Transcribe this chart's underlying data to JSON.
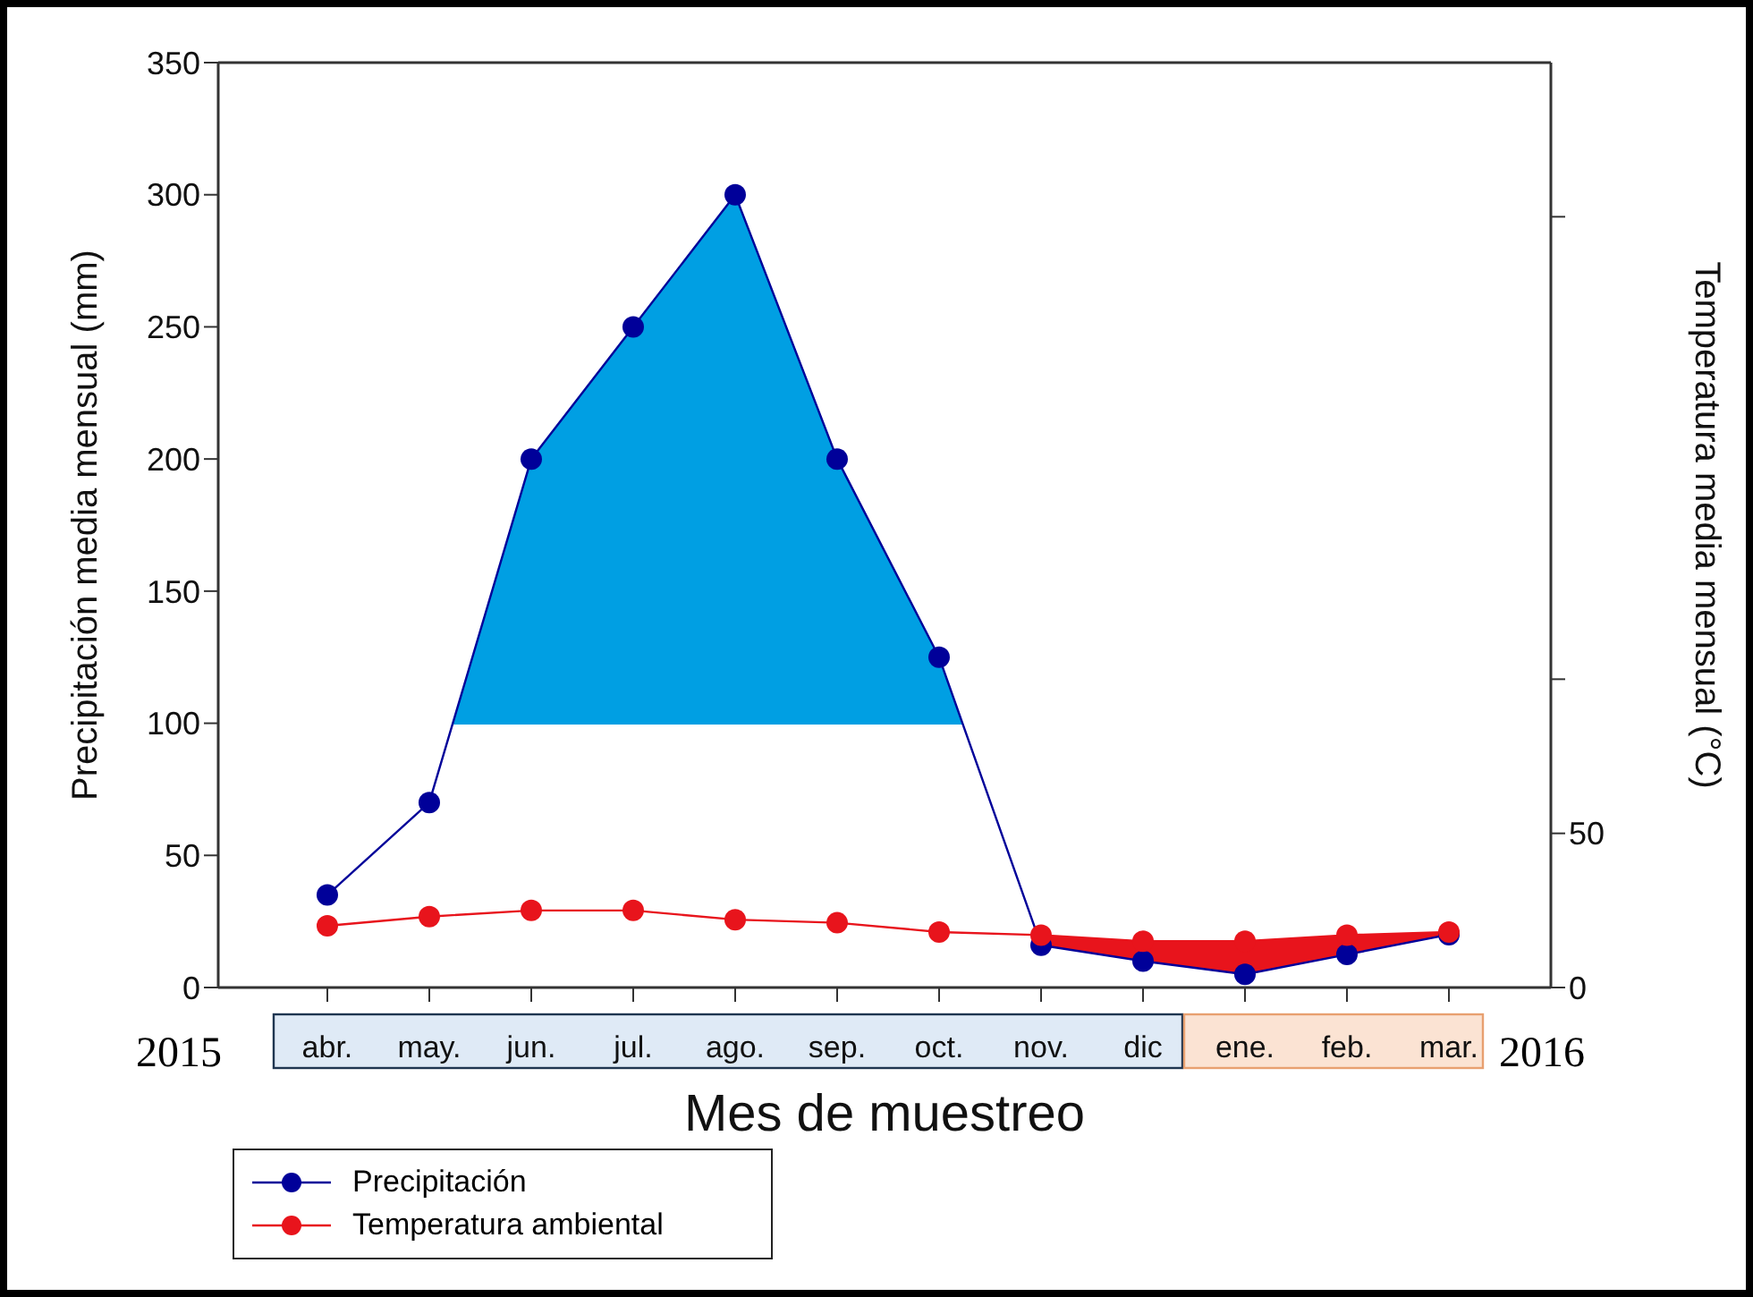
{
  "chart_data": {
    "type": "line",
    "ylabel": "Precipitación media mensual (mm)",
    "y2label": "Temperatura media mensual (°C)",
    "xlabel": "Mes de muestreo",
    "categories": [
      "abr.",
      "may.",
      "jun.",
      "jul.",
      "ago.",
      "sep.",
      "oct.",
      "nov.",
      "dic",
      "ene.",
      "feb.",
      "mar."
    ],
    "series": [
      {
        "name": "Precipitación",
        "color": "#000099",
        "values": [
          35,
          70,
          200,
          250,
          300,
          200,
          125,
          16,
          10,
          5,
          12.5,
          20
        ]
      },
      {
        "name": "Temperatura ambiental",
        "color": "#e8141c",
        "axis": "y2",
        "values": [
          20,
          23,
          25,
          25,
          22,
          21,
          18,
          17,
          15,
          15,
          17,
          18
        ]
      }
    ],
    "ylim": [
      0,
      350
    ],
    "yticks": [
      0,
      50,
      100,
      150,
      200,
      250,
      300,
      350
    ],
    "y2lim": [
      0,
      300
    ],
    "y2ticks": [
      0,
      50,
      {
        "value": 100,
        "label": null
      },
      {
        "value": 250,
        "label": null
      }
    ],
    "ref_lines": [
      {
        "axis": "y",
        "value": 100,
        "color": "#009fe3"
      }
    ],
    "annotations": [
      "2015",
      "2016"
    ],
    "marker": "circle",
    "line_style": "solid",
    "legend": "bottom left"
  }
}
